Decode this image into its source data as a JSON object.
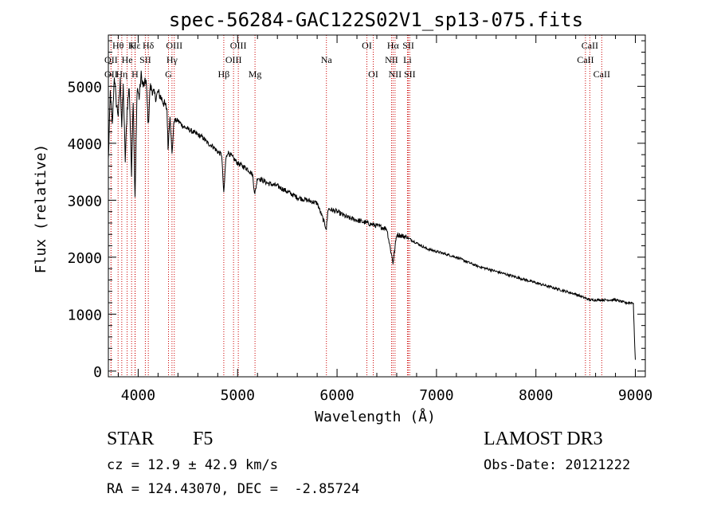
{
  "chart_data": {
    "type": "line",
    "title": "spec-56284-GAC122S02V1_sp13-075.fits",
    "xlabel": "Wavelength (Å)",
    "ylabel": "Flux (relative)",
    "xlim": [
      3700,
      9100
    ],
    "ylim": [
      -100,
      5900
    ],
    "xticks": [
      4000,
      5000,
      6000,
      7000,
      8000,
      9000
    ],
    "xtick_labels": [
      "4000",
      "5000",
      "6000",
      "7000",
      "8000",
      "9000"
    ],
    "yticks": [
      0,
      1000,
      2000,
      3000,
      4000,
      5000
    ],
    "ytick_labels": [
      "0",
      "1000",
      "2000",
      "3000",
      "4000",
      "5000"
    ],
    "grid": false,
    "series": [
      {
        "name": "flux",
        "x": [
          3700,
          3720,
          3740,
          3760,
          3780,
          3800,
          3820,
          3835,
          3850,
          3870,
          3889,
          3910,
          3933,
          3950,
          3968,
          3990,
          4010,
          4030,
          4050,
          4080,
          4102,
          4120,
          4150,
          4180,
          4200,
          4230,
          4260,
          4290,
          4300,
          4320,
          4340,
          4360,
          4380,
          4400,
          4450,
          4500,
          4550,
          4600,
          4650,
          4700,
          4750,
          4800,
          4840,
          4861,
          4880,
          4900,
          4950,
          5000,
          5050,
          5100,
          5150,
          5173,
          5200,
          5300,
          5400,
          5500,
          5600,
          5700,
          5800,
          5893,
          5910,
          6000,
          6100,
          6200,
          6300,
          6400,
          6500,
          6563,
          6600,
          6700,
          6800,
          6900,
          7000,
          7200,
          7400,
          7600,
          7800,
          8000,
          8200,
          8400,
          8542,
          8600,
          8700,
          8800,
          8900,
          8980,
          8990,
          9000
        ],
        "y": [
          3700,
          4900,
          4300,
          5200,
          4700,
          4500,
          5100,
          4300,
          5000,
          3700,
          4600,
          5000,
          3500,
          4800,
          3000,
          5000,
          4800,
          5200,
          5000,
          5100,
          4300,
          5000,
          4900,
          4800,
          4900,
          4800,
          4700,
          4600,
          3900,
          4500,
          3800,
          4400,
          4400,
          4400,
          4300,
          4250,
          4200,
          4150,
          4100,
          4000,
          3950,
          3850,
          3800,
          3100,
          3700,
          3850,
          3750,
          3650,
          3600,
          3550,
          3450,
          3100,
          3400,
          3300,
          3250,
          3150,
          3050,
          3000,
          2950,
          2500,
          2850,
          2800,
          2700,
          2650,
          2600,
          2550,
          2500,
          1900,
          2400,
          2350,
          2250,
          2150,
          2100,
          2000,
          1850,
          1750,
          1650,
          1550,
          1450,
          1350,
          1250,
          1250,
          1250,
          1250,
          1200,
          1200,
          600,
          200
        ]
      }
    ],
    "line_markers": [
      {
        "label": "Hε",
        "x": 3970,
        "row": 0
      },
      {
        "label": "Hθ",
        "x": 3798,
        "row": 0
      },
      {
        "label": "K",
        "x": 3934,
        "row": 0
      },
      {
        "label": "Hδ",
        "x": 4102,
        "row": 0
      },
      {
        "label": "OIII",
        "x": 4363,
        "row": 0
      },
      {
        "label": "OIII",
        "x": 5007,
        "row": 0
      },
      {
        "label": "OI",
        "x": 6300,
        "row": 0
      },
      {
        "label": "Hα",
        "x": 6563,
        "row": 0
      },
      {
        "label": "SII",
        "x": 6717,
        "row": 0
      },
      {
        "label": "CaII",
        "x": 8542,
        "row": 0
      },
      {
        "label": "OII",
        "x": 3727,
        "row": 1
      },
      {
        "label": "He",
        "x": 3889,
        "row": 1
      },
      {
        "label": "Hγ",
        "x": 4340,
        "row": 1
      },
      {
        "label": "SII",
        "x": 4072,
        "row": 1
      },
      {
        "label": "OIII",
        "x": 4959,
        "row": 1
      },
      {
        "label": "Na",
        "x": 5893,
        "row": 1
      },
      {
        "label": "NII",
        "x": 6548,
        "row": 1
      },
      {
        "label": "Li",
        "x": 6708,
        "row": 1
      },
      {
        "label": "CaII",
        "x": 8498,
        "row": 1
      },
      {
        "label": "OII",
        "x": 3727,
        "row": 2
      },
      {
        "label": "Hη",
        "x": 3835,
        "row": 2
      },
      {
        "label": "H",
        "x": 3968,
        "row": 2
      },
      {
        "label": "G",
        "x": 4305,
        "row": 2
      },
      {
        "label": "Hβ",
        "x": 4861,
        "row": 2
      },
      {
        "label": "Mg",
        "x": 5175,
        "row": 2
      },
      {
        "label": "OI",
        "x": 6364,
        "row": 2
      },
      {
        "label": "NII",
        "x": 6583,
        "row": 2
      },
      {
        "label": "SII",
        "x": 6731,
        "row": 2
      },
      {
        "label": "CaII",
        "x": 8662,
        "row": 2
      }
    ]
  },
  "info": {
    "object_class": "STAR",
    "subclass": "F5",
    "survey": "LAMOST DR3",
    "redshift_line": "cz = 12.9 ± 42.9 km/s",
    "obs_date": "Obs-Date: 20121222",
    "coords": "RA = 124.43070, DEC =  -2.85724"
  },
  "colors": {
    "line_marker": "#cc0000",
    "spectrum": "#000000",
    "axis": "#000000"
  }
}
